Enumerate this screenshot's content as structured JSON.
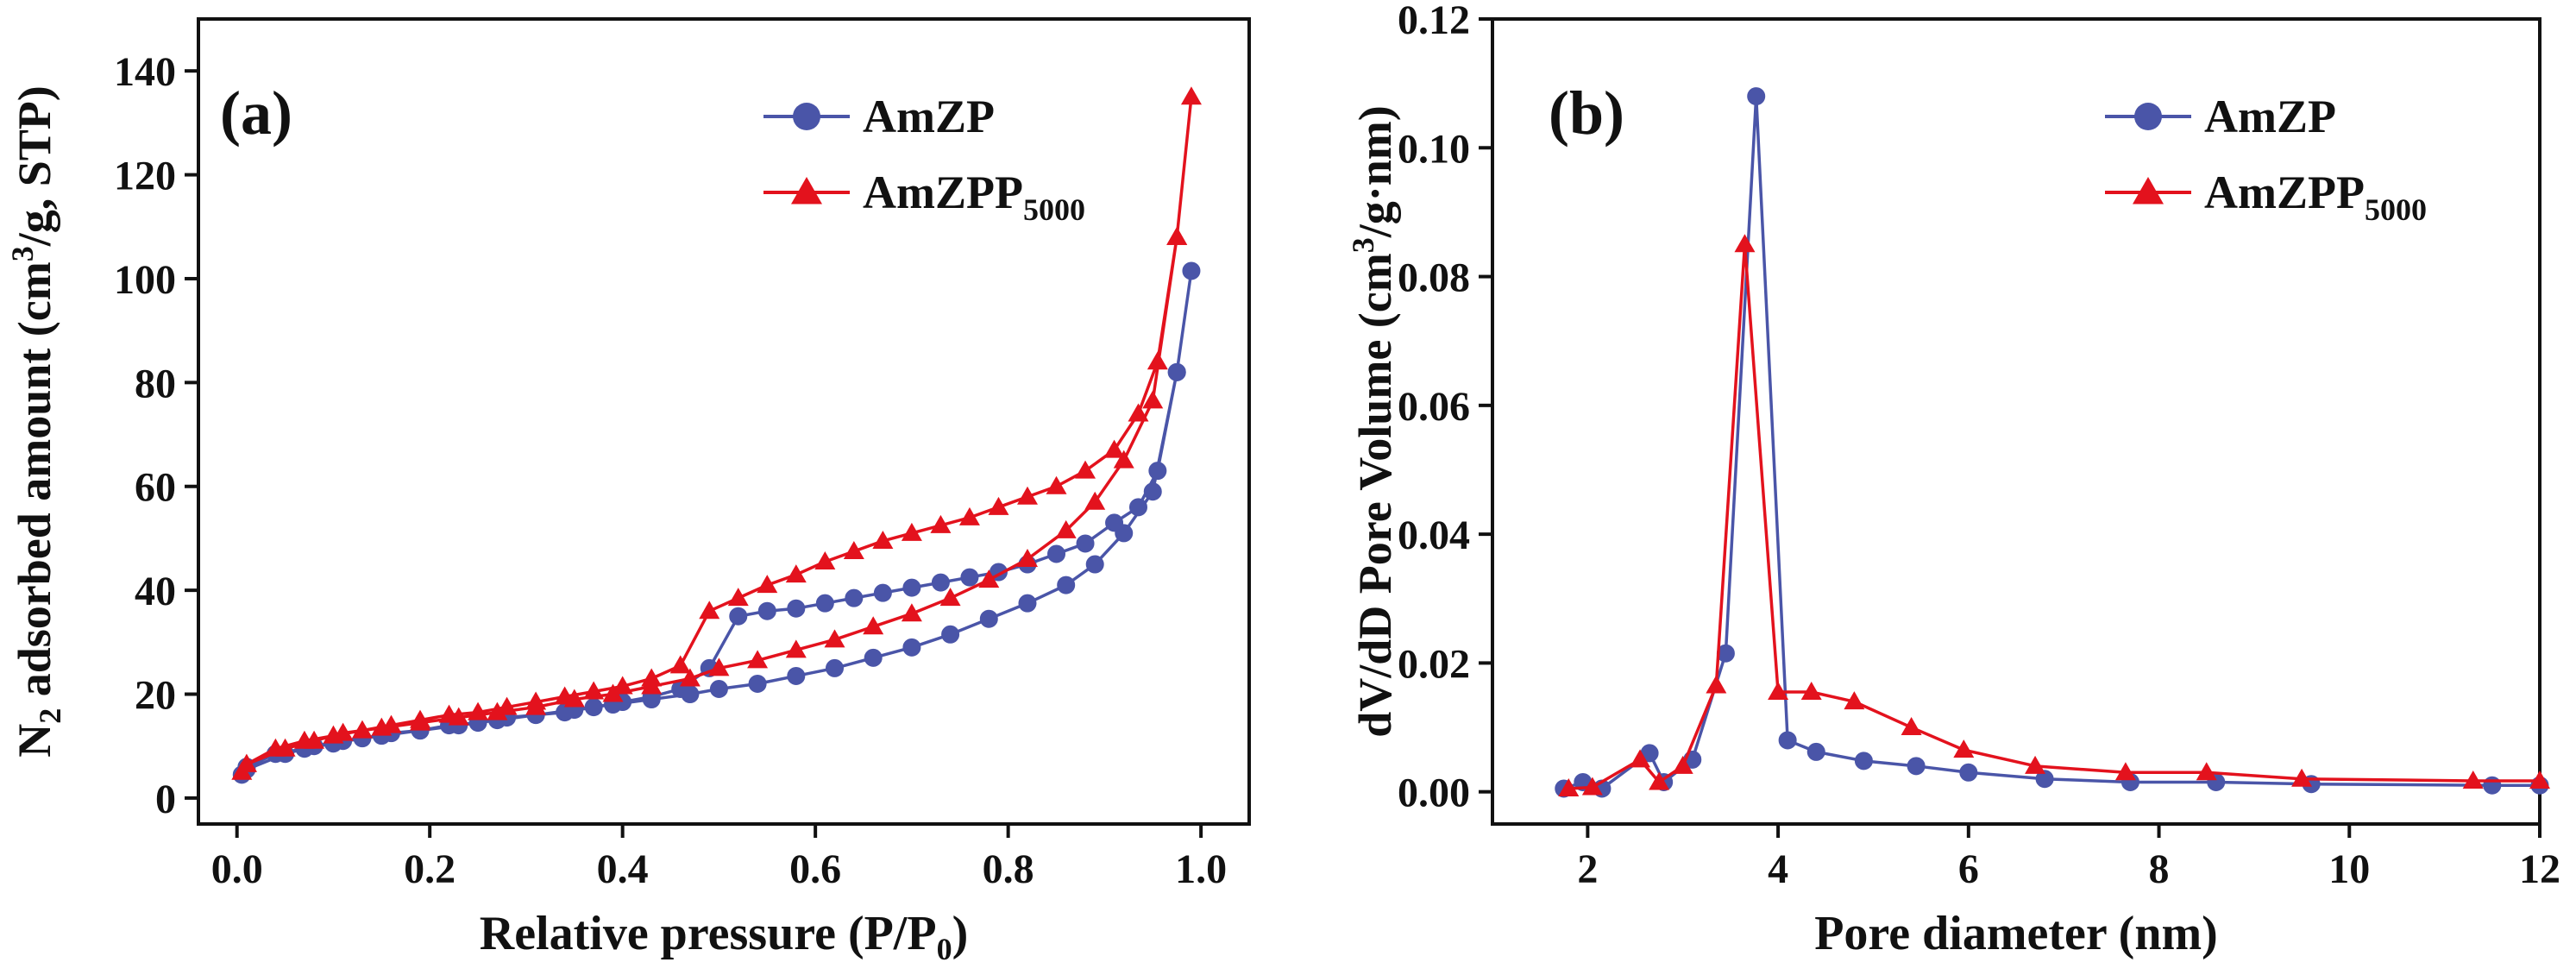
{
  "colors": {
    "amzp": "#4a55a8",
    "amzpp": "#e3121d",
    "axis": "#111111"
  },
  "chart_data": [
    {
      "type": "line",
      "panel_label": "(a)",
      "xlabel": "Relative pressure",
      "xlabel_unit": "(P/P",
      "xlabel_unit_sub": "0",
      "xlabel_unit_end": ")",
      "ylabel_lead": "N",
      "ylabel_lead_sub": "2",
      "ylabel_mid": " adsorbed amount (cm",
      "ylabel_sup": "3",
      "ylabel_end": "/g, STP)",
      "xlim": [
        -0.04,
        1.05
      ],
      "ylim": [
        -5,
        150
      ],
      "xticks": [
        0.0,
        0.2,
        0.4,
        0.6,
        0.8,
        1.0
      ],
      "xtick_labels": [
        "0.0",
        "0.2",
        "0.4",
        "0.6",
        "0.8",
        "1.0"
      ],
      "yticks": [
        0,
        20,
        40,
        60,
        80,
        100,
        120,
        140
      ],
      "ytick_labels": [
        "0",
        "20",
        "40",
        "60",
        "80",
        "100",
        "120",
        "140"
      ],
      "legend": [
        {
          "name": "AmZP",
          "sub": ""
        },
        {
          "name": "AmZPP",
          "sub": "5000"
        }
      ],
      "series": [
        {
          "name": "AmZP",
          "marker": "circle",
          "x": [
            0.005,
            0.01,
            0.05,
            0.08,
            0.11,
            0.15,
            0.19,
            0.23,
            0.27,
            0.31,
            0.35,
            0.39,
            0.43,
            0.47,
            0.5,
            0.54,
            0.58,
            0.62,
            0.66,
            0.7,
            0.74,
            0.78,
            0.82,
            0.86,
            0.89,
            0.92,
            0.95,
            0.975,
            0.99,
            0.975,
            0.955,
            0.935,
            0.91,
            0.88,
            0.85,
            0.82,
            0.79,
            0.76,
            0.73,
            0.7,
            0.67,
            0.64,
            0.61,
            0.58,
            0.55,
            0.52,
            0.49,
            0.46,
            0.43,
            0.4,
            0.37,
            0.34,
            0.31,
            0.28,
            0.25,
            0.22,
            0.19,
            0.16,
            0.13,
            0.1,
            0.07,
            0.04,
            0.01
          ],
          "y": [
            4.5,
            5.5,
            8.5,
            10,
            11,
            12,
            13,
            14,
            15,
            16,
            17,
            18,
            19,
            20,
            21,
            22,
            23.5,
            25,
            27,
            29,
            31.5,
            34.5,
            37.5,
            41,
            45,
            51,
            59,
            82,
            101.5,
            82,
            63,
            56,
            53,
            49,
            47,
            45,
            43.5,
            42.5,
            41.5,
            40.5,
            39.5,
            38.5,
            37.5,
            36.5,
            36,
            35,
            25,
            21,
            19.5,
            18.5,
            17.5,
            16.5,
            16,
            15.5,
            14.5,
            14,
            13,
            12.5,
            11.5,
            10.5,
            9.5,
            8.5,
            6
          ]
        },
        {
          "name": "AmZPP5000",
          "marker": "triangle",
          "x": [
            0.005,
            0.01,
            0.05,
            0.08,
            0.11,
            0.15,
            0.19,
            0.23,
            0.27,
            0.31,
            0.35,
            0.39,
            0.43,
            0.47,
            0.5,
            0.54,
            0.58,
            0.62,
            0.66,
            0.7,
            0.74,
            0.78,
            0.82,
            0.86,
            0.89,
            0.92,
            0.95,
            0.975,
            0.99,
            0.975,
            0.955,
            0.935,
            0.91,
            0.88,
            0.85,
            0.82,
            0.79,
            0.76,
            0.73,
            0.7,
            0.67,
            0.64,
            0.61,
            0.58,
            0.55,
            0.52,
            0.49,
            0.46,
            0.43,
            0.4,
            0.37,
            0.34,
            0.31,
            0.28,
            0.25,
            0.22,
            0.19,
            0.16,
            0.13,
            0.1,
            0.07,
            0.04,
            0.01
          ],
          "y": [
            5,
            6.5,
            9.5,
            11,
            12.5,
            13.5,
            14.5,
            15.5,
            16.5,
            17.5,
            19,
            20,
            21.5,
            23,
            25,
            26.5,
            28.5,
            30.5,
            33,
            35.5,
            38.5,
            42,
            46,
            51.5,
            57,
            65,
            76.5,
            108,
            135,
            108,
            84,
            74,
            67,
            63,
            60,
            58,
            56,
            54,
            52.5,
            51,
            49.5,
            47.5,
            45.5,
            43,
            41,
            38.5,
            36,
            25.5,
            23,
            21.5,
            20.5,
            19.5,
            18.5,
            17.5,
            16.5,
            16,
            15,
            14,
            13,
            12,
            11,
            9.5,
            6.5
          ]
        }
      ]
    },
    {
      "type": "line",
      "panel_label": "(b)",
      "xlabel": "Pore diameter (nm)",
      "ylabel_mid": "dV/dD Pore Volume (cm",
      "ylabel_sup": "3",
      "ylabel_end": "/g·nm)",
      "xlim": [
        1,
        12
      ],
      "ylim": [
        -0.005,
        0.12
      ],
      "xticks": [
        2,
        4,
        6,
        8,
        10,
        12
      ],
      "xtick_labels": [
        "2",
        "4",
        "6",
        "8",
        "10",
        "12"
      ],
      "yticks": [
        0,
        0.02,
        0.04,
        0.06,
        0.08,
        0.1,
        0.12
      ],
      "ytick_labels": [
        "0.00",
        "0.02",
        "0.04",
        "0.06",
        "0.08",
        "0.10",
        "0.12"
      ],
      "legend": [
        {
          "name": "AmZP",
          "sub": ""
        },
        {
          "name": "AmZPP",
          "sub": "5000"
        }
      ],
      "series": [
        {
          "name": "AmZP",
          "marker": "circle",
          "x": [
            1.75,
            1.95,
            2.15,
            2.65,
            2.8,
            3.1,
            3.45,
            3.77,
            4.1,
            4.4,
            4.9,
            5.45,
            6.0,
            6.8,
            7.7,
            8.6,
            9.6,
            11.5,
            12.0
          ],
          "y": [
            0.0005,
            0.0015,
            0.0005,
            0.006,
            0.0015,
            0.005,
            0.0215,
            0.108,
            0.008,
            0.0062,
            0.0048,
            0.004,
            0.003,
            0.002,
            0.0015,
            0.0015,
            0.0012,
            0.001,
            0.001
          ]
        },
        {
          "name": "AmZPP5000",
          "marker": "triangle",
          "x": [
            1.8,
            2.05,
            2.55,
            2.75,
            3.0,
            3.35,
            3.65,
            4.0,
            4.35,
            4.8,
            5.4,
            5.95,
            6.7,
            7.65,
            8.5,
            9.5,
            11.3,
            12.0
          ],
          "y": [
            0.0005,
            0.0007,
            0.005,
            0.0015,
            0.004,
            0.0165,
            0.085,
            0.0155,
            0.0155,
            0.014,
            0.01,
            0.0065,
            0.004,
            0.003,
            0.003,
            0.002,
            0.0017,
            0.0017
          ]
        }
      ]
    }
  ]
}
